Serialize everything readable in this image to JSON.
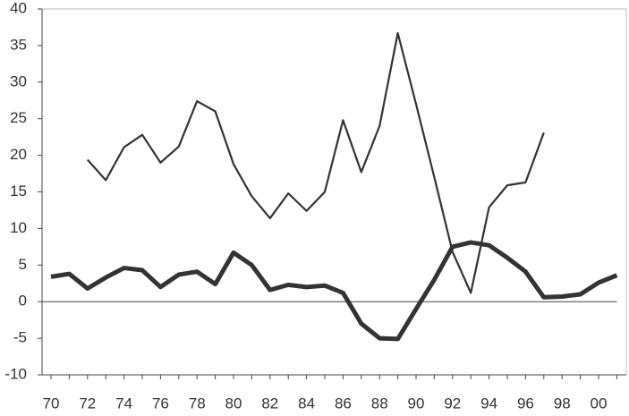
{
  "chart_data": {
    "type": "line",
    "categories": [
      "70",
      null,
      "72",
      null,
      "74",
      null,
      "76",
      null,
      "78",
      null,
      "80",
      null,
      "82",
      null,
      "84",
      null,
      "86",
      null,
      "88",
      null,
      "90",
      null,
      "92",
      null,
      "94",
      null,
      "96",
      null,
      "98",
      null,
      "00",
      null
    ],
    "series": [
      {
        "color": "#333333",
        "width": 2.2,
        "values": [
          null,
          null,
          19.4,
          16.6,
          21.1,
          22.8,
          19.0,
          21.2,
          27.4,
          26.0,
          18.8,
          14.4,
          11.4,
          14.8,
          12.4,
          15.0,
          24.8,
          17.7,
          24.0,
          36.7,
          27.0,
          17.0,
          6.8,
          1.2,
          12.9,
          15.9,
          16.3,
          23.1,
          null,
          null,
          null,
          null
        ]
      },
      {
        "color": "#333333",
        "width": 5,
        "values": [
          3.4,
          3.8,
          1.8,
          3.3,
          4.6,
          4.3,
          2.0,
          3.7,
          4.1,
          2.4,
          6.7,
          5.0,
          1.6,
          2.3,
          2.0,
          2.2,
          1.2,
          -3.0,
          -5.0,
          -5.1,
          -1.0,
          3.0,
          7.5,
          8.1,
          7.7,
          6.0,
          4.1,
          0.6,
          0.7,
          1.0,
          2.6,
          3.6
        ]
      }
    ],
    "ylim": [
      -10,
      40
    ],
    "yticks": [
      -10,
      -5,
      0,
      5,
      10,
      15,
      20,
      25,
      30,
      35,
      40
    ],
    "grid": false
  }
}
